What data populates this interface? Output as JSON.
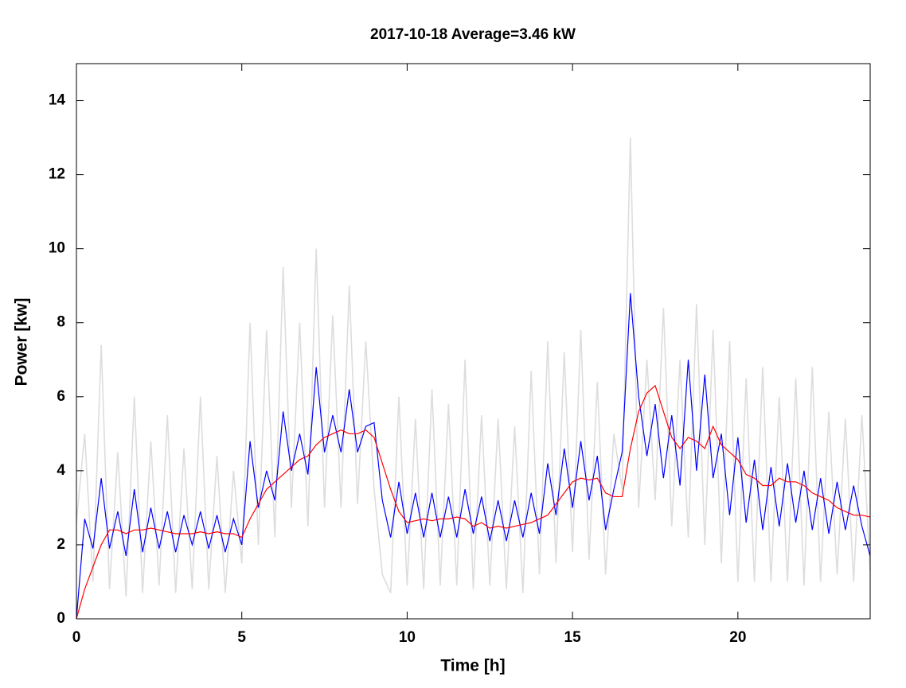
{
  "chart_data": {
    "type": "line",
    "title": "2017-10-18 Average=3.46 kW",
    "x_label": "Time [h]",
    "y_label": "Power [kw]",
    "xlim": [
      0,
      24
    ],
    "ylim": [
      0,
      15
    ],
    "xticks": [
      0,
      5,
      10,
      15,
      20
    ],
    "yticks": [
      0,
      2,
      4,
      6,
      8,
      10,
      12,
      14
    ],
    "x": [
      0,
      0.25,
      0.5,
      0.75,
      1,
      1.25,
      1.5,
      1.75,
      2,
      2.25,
      2.5,
      2.75,
      3,
      3.25,
      3.5,
      3.75,
      4,
      4.25,
      4.5,
      4.75,
      5,
      5.25,
      5.5,
      5.75,
      6,
      6.25,
      6.5,
      6.75,
      7,
      7.25,
      7.5,
      7.75,
      8,
      8.25,
      8.5,
      8.75,
      9,
      9.25,
      9.5,
      9.75,
      10,
      10.25,
      10.5,
      10.75,
      11,
      11.25,
      11.5,
      11.75,
      12,
      12.25,
      12.5,
      12.75,
      13,
      13.25,
      13.5,
      13.75,
      14,
      14.25,
      14.5,
      14.75,
      15,
      15.25,
      15.5,
      15.75,
      16,
      16.25,
      16.5,
      16.75,
      17,
      17.25,
      17.5,
      17.75,
      18,
      18.25,
      18.5,
      18.75,
      19,
      19.25,
      19.5,
      19.75,
      20,
      20.25,
      20.5,
      20.75,
      21,
      21.25,
      21.5,
      21.75,
      22,
      22.25,
      22.5,
      22.75,
      23,
      23.25,
      23.5,
      23.75,
      24
    ],
    "series": [
      {
        "color": "#dddddd",
        "values": [
          2.6,
          5,
          1,
          7.4,
          0.8,
          4.5,
          0.6,
          6,
          0.7,
          4.8,
          0.9,
          5.5,
          0.7,
          4.6,
          0.8,
          6,
          0.8,
          4.4,
          0.7,
          4,
          1.5,
          8,
          2,
          7.8,
          2.2,
          9.5,
          3,
          8,
          2.5,
          10,
          3,
          8.2,
          3,
          9,
          3.1,
          7.5,
          3.5,
          1.2,
          0.7,
          6,
          0.9,
          5.4,
          0.8,
          6.2,
          0.9,
          5.8,
          0.9,
          7,
          0.8,
          5.5,
          0.9,
          5.4,
          0.8,
          5.2,
          0.7,
          6.7,
          1.2,
          7.5,
          1.5,
          7.2,
          1.8,
          7.8,
          1.6,
          6.4,
          1.2,
          5,
          3.5,
          13,
          3,
          7,
          3.2,
          8.4,
          2.5,
          7,
          2.2,
          8.5,
          2,
          7.8,
          1.5,
          7.5,
          1,
          6.5,
          1,
          6.8,
          1,
          6,
          1,
          6.5,
          0.9,
          6.8,
          1,
          5.6,
          1.2,
          5.4,
          1,
          5.5,
          1.3
        ]
      },
      {
        "color": "#0000ff",
        "values": [
          0,
          2.7,
          1.9,
          3.8,
          1.9,
          2.9,
          1.7,
          3.5,
          1.8,
          3,
          1.9,
          2.9,
          1.8,
          2.8,
          2,
          2.9,
          1.9,
          2.8,
          1.8,
          2.7,
          2,
          4.8,
          3,
          4,
          3.2,
          5.6,
          4,
          5,
          3.9,
          6.8,
          4.5,
          5.5,
          4.5,
          6.2,
          4.5,
          5.2,
          5.3,
          3.2,
          2.2,
          3.7,
          2.3,
          3.4,
          2.2,
          3.4,
          2.2,
          3.3,
          2.2,
          3.5,
          2.3,
          3.3,
          2.1,
          3.2,
          2.1,
          3.2,
          2.2,
          3.4,
          2.3,
          4.2,
          2.8,
          4.6,
          3,
          4.8,
          3.2,
          4.4,
          2.4,
          3.5,
          4.5,
          8.8,
          6,
          4.4,
          5.8,
          3.8,
          5.5,
          3.6,
          7,
          4,
          6.6,
          3.8,
          5,
          2.8,
          4.9,
          2.6,
          4.3,
          2.4,
          4.1,
          2.5,
          4.2,
          2.6,
          4,
          2.4,
          3.8,
          2.3,
          3.7,
          2.4,
          3.6,
          2.5,
          1.7
        ]
      },
      {
        "color": "#ff0000",
        "values": [
          0,
          0.8,
          1.4,
          2,
          2.4,
          2.4,
          2.3,
          2.4,
          2.4,
          2.45,
          2.4,
          2.35,
          2.3,
          2.3,
          2.3,
          2.35,
          2.3,
          2.35,
          2.3,
          2.3,
          2.2,
          2.7,
          3.1,
          3.5,
          3.7,
          3.9,
          4.1,
          4.3,
          4.4,
          4.7,
          4.9,
          5,
          5.1,
          5,
          5,
          5.1,
          4.9,
          4.2,
          3.5,
          2.9,
          2.6,
          2.65,
          2.7,
          2.65,
          2.7,
          2.7,
          2.75,
          2.7,
          2.5,
          2.6,
          2.45,
          2.5,
          2.45,
          2.5,
          2.55,
          2.6,
          2.7,
          2.8,
          3.1,
          3.4,
          3.7,
          3.8,
          3.75,
          3.8,
          3.4,
          3.3,
          3.3,
          4.6,
          5.6,
          6.1,
          6.3,
          5.6,
          4.9,
          4.6,
          4.9,
          4.8,
          4.6,
          5.2,
          4.7,
          4.5,
          4.3,
          3.9,
          3.8,
          3.6,
          3.6,
          3.8,
          3.7,
          3.7,
          3.6,
          3.4,
          3.3,
          3.2,
          3,
          2.9,
          2.8,
          2.8,
          2.75
        ]
      }
    ]
  }
}
